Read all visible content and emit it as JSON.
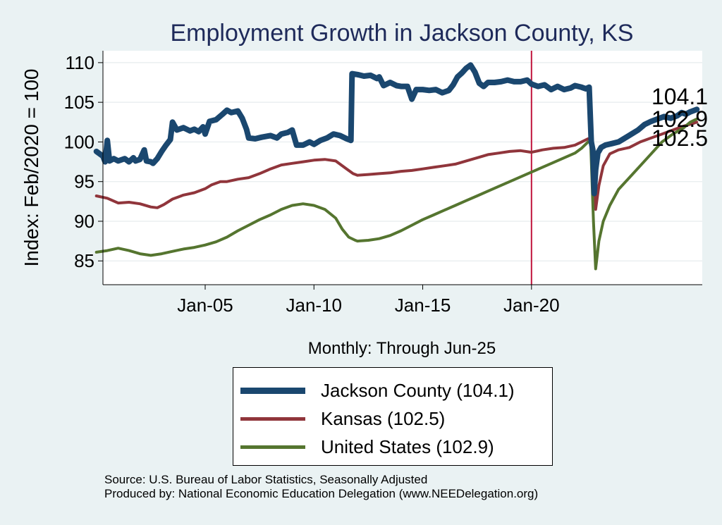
{
  "chart_data": {
    "type": "line",
    "title": "Employment Growth in Jackson  County, KS",
    "ylabel": "Index: Feb/2020 = 100",
    "xlabel": "Monthly: Through Jun-25",
    "ylim": [
      82,
      111.5
    ],
    "xlim": [
      2000.3,
      2027.85
    ],
    "y_ticks": [
      "85",
      "90",
      "95",
      "100",
      "105",
      "110"
    ],
    "x_ticks": [
      {
        "label": "Jan-05",
        "t": 2005.0
      },
      {
        "label": "Jan-10",
        "t": 2010.0
      },
      {
        "label": "Jan-15",
        "t": 2015.0
      },
      {
        "label": "Jan-20",
        "t": 2020.0
      }
    ],
    "reference_line": {
      "t": 2020.0,
      "color": "#c0143c"
    },
    "series": [
      {
        "name": "Jackson  County (104.1)",
        "end_label": "104.1",
        "color": "#1a476f",
        "points": [
          [
            2000.0,
            98.8
          ],
          [
            2000.3,
            98.2
          ],
          [
            2000.4,
            97.5
          ],
          [
            2000.5,
            100.2
          ],
          [
            2000.6,
            97.6
          ],
          [
            2000.8,
            97.9
          ],
          [
            2001.0,
            97.6
          ],
          [
            2001.3,
            97.9
          ],
          [
            2001.5,
            97.5
          ],
          [
            2001.7,
            98.0
          ],
          [
            2001.8,
            97.6
          ],
          [
            2002.0,
            97.8
          ],
          [
            2002.2,
            99.0
          ],
          [
            2002.3,
            97.6
          ],
          [
            2002.5,
            97.5
          ],
          [
            2002.6,
            97.3
          ],
          [
            2002.8,
            97.9
          ],
          [
            2003.0,
            98.8
          ],
          [
            2003.2,
            99.6
          ],
          [
            2003.4,
            100.3
          ],
          [
            2003.5,
            102.5
          ],
          [
            2003.7,
            101.5
          ],
          [
            2004.0,
            101.8
          ],
          [
            2004.3,
            101.4
          ],
          [
            2004.5,
            101.6
          ],
          [
            2004.7,
            101.3
          ],
          [
            2004.9,
            101.9
          ],
          [
            2005.0,
            101.0
          ],
          [
            2005.2,
            102.6
          ],
          [
            2005.5,
            102.8
          ],
          [
            2005.8,
            103.5
          ],
          [
            2006.0,
            104.0
          ],
          [
            2006.2,
            103.7
          ],
          [
            2006.5,
            103.9
          ],
          [
            2006.7,
            103.0
          ],
          [
            2006.9,
            101.6
          ],
          [
            2007.0,
            100.5
          ],
          [
            2007.3,
            100.4
          ],
          [
            2007.6,
            100.6
          ],
          [
            2008.0,
            100.8
          ],
          [
            2008.3,
            100.5
          ],
          [
            2008.5,
            101.0
          ],
          [
            2008.8,
            101.2
          ],
          [
            2009.0,
            101.5
          ],
          [
            2009.2,
            99.6
          ],
          [
            2009.5,
            99.6
          ],
          [
            2009.8,
            100.0
          ],
          [
            2010.0,
            99.7
          ],
          [
            2010.3,
            100.2
          ],
          [
            2010.6,
            100.5
          ],
          [
            2010.9,
            101.0
          ],
          [
            2011.2,
            100.8
          ],
          [
            2011.5,
            100.4
          ],
          [
            2011.7,
            100.2
          ],
          [
            2011.75,
            108.6
          ],
          [
            2012.0,
            108.5
          ],
          [
            2012.3,
            108.3
          ],
          [
            2012.6,
            108.4
          ],
          [
            2012.9,
            108.0
          ],
          [
            2013.0,
            108.2
          ],
          [
            2013.2,
            107.1
          ],
          [
            2013.5,
            107.5
          ],
          [
            2013.8,
            107.1
          ],
          [
            2014.0,
            107.0
          ],
          [
            2014.3,
            107.0
          ],
          [
            2014.5,
            105.4
          ],
          [
            2014.7,
            106.6
          ],
          [
            2015.0,
            106.6
          ],
          [
            2015.3,
            106.5
          ],
          [
            2015.6,
            106.6
          ],
          [
            2015.9,
            106.2
          ],
          [
            2016.2,
            106.5
          ],
          [
            2016.4,
            107.2
          ],
          [
            2016.6,
            108.2
          ],
          [
            2016.8,
            108.7
          ],
          [
            2017.0,
            109.3
          ],
          [
            2017.2,
            109.7
          ],
          [
            2017.4,
            108.8
          ],
          [
            2017.6,
            107.4
          ],
          [
            2017.8,
            107.0
          ],
          [
            2018.0,
            107.5
          ],
          [
            2018.3,
            107.5
          ],
          [
            2018.6,
            107.6
          ],
          [
            2018.9,
            107.8
          ],
          [
            2019.2,
            107.6
          ],
          [
            2019.5,
            107.6
          ],
          [
            2019.8,
            107.8
          ],
          [
            2020.0,
            107.3
          ],
          [
            2020.3,
            107.0
          ],
          [
            2020.6,
            107.2
          ],
          [
            2020.9,
            106.6
          ],
          [
            2021.2,
            107.0
          ],
          [
            2021.5,
            106.6
          ],
          [
            2021.8,
            106.8
          ],
          [
            2022.0,
            107.1
          ],
          [
            2022.3,
            106.9
          ],
          [
            2022.5,
            106.7
          ],
          [
            2022.65,
            106.9
          ],
          [
            2022.75,
            100.0
          ],
          [
            2022.82,
            99.0
          ],
          [
            2022.88,
            93.5
          ],
          [
            2022.95,
            96.5
          ],
          [
            2023.05,
            98.6
          ],
          [
            2023.2,
            99.3
          ],
          [
            2023.4,
            99.6
          ],
          [
            2023.7,
            99.8
          ],
          [
            2024.0,
            100.0
          ],
          [
            2024.3,
            100.5
          ],
          [
            2024.6,
            101.0
          ],
          [
            2024.9,
            101.5
          ],
          [
            2025.2,
            102.2
          ],
          [
            2025.5,
            102.6
          ],
          [
            2025.8,
            102.9
          ],
          [
            2026.1,
            103.2
          ],
          [
            2026.4,
            103.0
          ],
          [
            2026.7,
            103.3
          ],
          [
            2026.9,
            103.7
          ],
          [
            2027.1,
            103.5
          ],
          [
            2027.3,
            103.8
          ],
          [
            2027.6,
            104.1
          ]
        ]
      },
      {
        "name": "Kansas (102.5)",
        "end_label": "102.5",
        "color": "#90353b",
        "points": [
          [
            2000.0,
            93.2
          ],
          [
            2000.5,
            92.9
          ],
          [
            2001.0,
            92.3
          ],
          [
            2001.5,
            92.4
          ],
          [
            2002.0,
            92.2
          ],
          [
            2002.5,
            91.8
          ],
          [
            2002.8,
            91.7
          ],
          [
            2003.1,
            92.1
          ],
          [
            2003.5,
            92.8
          ],
          [
            2004.0,
            93.3
          ],
          [
            2004.5,
            93.6
          ],
          [
            2005.0,
            94.1
          ],
          [
            2005.3,
            94.6
          ],
          [
            2005.7,
            95.0
          ],
          [
            2006.0,
            95.0
          ],
          [
            2006.5,
            95.3
          ],
          [
            2007.0,
            95.5
          ],
          [
            2007.5,
            96.0
          ],
          [
            2008.0,
            96.6
          ],
          [
            2008.5,
            97.1
          ],
          [
            2009.0,
            97.3
          ],
          [
            2009.5,
            97.5
          ],
          [
            2010.0,
            97.7
          ],
          [
            2010.5,
            97.8
          ],
          [
            2011.0,
            97.6
          ],
          [
            2011.5,
            96.6
          ],
          [
            2011.8,
            96.0
          ],
          [
            2012.0,
            95.8
          ],
          [
            2012.5,
            95.9
          ],
          [
            2013.0,
            96.0
          ],
          [
            2013.5,
            96.1
          ],
          [
            2014.0,
            96.3
          ],
          [
            2014.5,
            96.4
          ],
          [
            2015.0,
            96.6
          ],
          [
            2015.5,
            96.8
          ],
          [
            2016.0,
            97.0
          ],
          [
            2016.5,
            97.2
          ],
          [
            2017.0,
            97.6
          ],
          [
            2017.5,
            98.0
          ],
          [
            2018.0,
            98.4
          ],
          [
            2018.5,
            98.6
          ],
          [
            2019.0,
            98.8
          ],
          [
            2019.5,
            98.9
          ],
          [
            2020.0,
            98.7
          ],
          [
            2020.5,
            99.0
          ],
          [
            2021.0,
            99.2
          ],
          [
            2021.5,
            99.3
          ],
          [
            2022.0,
            99.6
          ],
          [
            2022.3,
            100.0
          ],
          [
            2022.6,
            100.4
          ],
          [
            2022.72,
            100.3
          ],
          [
            2022.85,
            96.0
          ],
          [
            2022.95,
            91.5
          ],
          [
            2023.1,
            94.5
          ],
          [
            2023.3,
            97.0
          ],
          [
            2023.6,
            98.5
          ],
          [
            2024.0,
            99.0
          ],
          [
            2024.5,
            99.3
          ],
          [
            2025.0,
            100.0
          ],
          [
            2025.5,
            100.5
          ],
          [
            2026.0,
            101.0
          ],
          [
            2026.5,
            101.5
          ],
          [
            2027.0,
            102.0
          ],
          [
            2027.5,
            102.4
          ],
          [
            2027.6,
            102.5
          ]
        ]
      },
      {
        "name": "United States (102.9)",
        "end_label": "102.9",
        "color": "#55752f",
        "points": [
          [
            2000.0,
            86.1
          ],
          [
            2000.5,
            86.3
          ],
          [
            2001.0,
            86.6
          ],
          [
            2001.5,
            86.3
          ],
          [
            2002.0,
            85.9
          ],
          [
            2002.5,
            85.7
          ],
          [
            2003.0,
            85.9
          ],
          [
            2003.5,
            86.2
          ],
          [
            2004.0,
            86.5
          ],
          [
            2004.5,
            86.7
          ],
          [
            2005.0,
            87.0
          ],
          [
            2005.5,
            87.4
          ],
          [
            2006.0,
            88.0
          ],
          [
            2006.5,
            88.8
          ],
          [
            2007.0,
            89.5
          ],
          [
            2007.5,
            90.2
          ],
          [
            2008.0,
            90.8
          ],
          [
            2008.5,
            91.5
          ],
          [
            2009.0,
            92.0
          ],
          [
            2009.5,
            92.2
          ],
          [
            2010.0,
            92.0
          ],
          [
            2010.5,
            91.5
          ],
          [
            2011.0,
            90.4
          ],
          [
            2011.3,
            89.0
          ],
          [
            2011.6,
            88.0
          ],
          [
            2011.9,
            87.6
          ],
          [
            2012.0,
            87.5
          ],
          [
            2012.5,
            87.6
          ],
          [
            2013.0,
            87.8
          ],
          [
            2013.5,
            88.2
          ],
          [
            2014.0,
            88.8
          ],
          [
            2014.5,
            89.5
          ],
          [
            2015.0,
            90.2
          ],
          [
            2015.5,
            90.8
          ],
          [
            2016.0,
            91.4
          ],
          [
            2016.5,
            92.0
          ],
          [
            2017.0,
            92.6
          ],
          [
            2017.5,
            93.2
          ],
          [
            2018.0,
            93.8
          ],
          [
            2018.5,
            94.4
          ],
          [
            2019.0,
            95.0
          ],
          [
            2019.5,
            95.6
          ],
          [
            2020.0,
            96.2
          ],
          [
            2020.5,
            96.8
          ],
          [
            2021.0,
            97.4
          ],
          [
            2021.5,
            98.0
          ],
          [
            2022.0,
            98.6
          ],
          [
            2022.3,
            99.2
          ],
          [
            2022.6,
            100.0
          ],
          [
            2022.72,
            100.0
          ],
          [
            2022.85,
            90.0
          ],
          [
            2022.95,
            84.0
          ],
          [
            2023.1,
            87.5
          ],
          [
            2023.3,
            90.0
          ],
          [
            2023.6,
            92.0
          ],
          [
            2024.0,
            94.0
          ],
          [
            2024.5,
            95.5
          ],
          [
            2025.0,
            97.0
          ],
          [
            2025.5,
            98.5
          ],
          [
            2026.0,
            100.0
          ],
          [
            2026.5,
            101.0
          ],
          [
            2027.0,
            101.8
          ],
          [
            2027.3,
            102.5
          ],
          [
            2027.6,
            102.9
          ]
        ]
      }
    ],
    "source_lines": [
      "Source: U.S. Bureau of Labor Statistics, Seasonally Adjusted",
      "Produced by: National Economic Education Delegation (www.NEEDelegation.org)"
    ]
  }
}
